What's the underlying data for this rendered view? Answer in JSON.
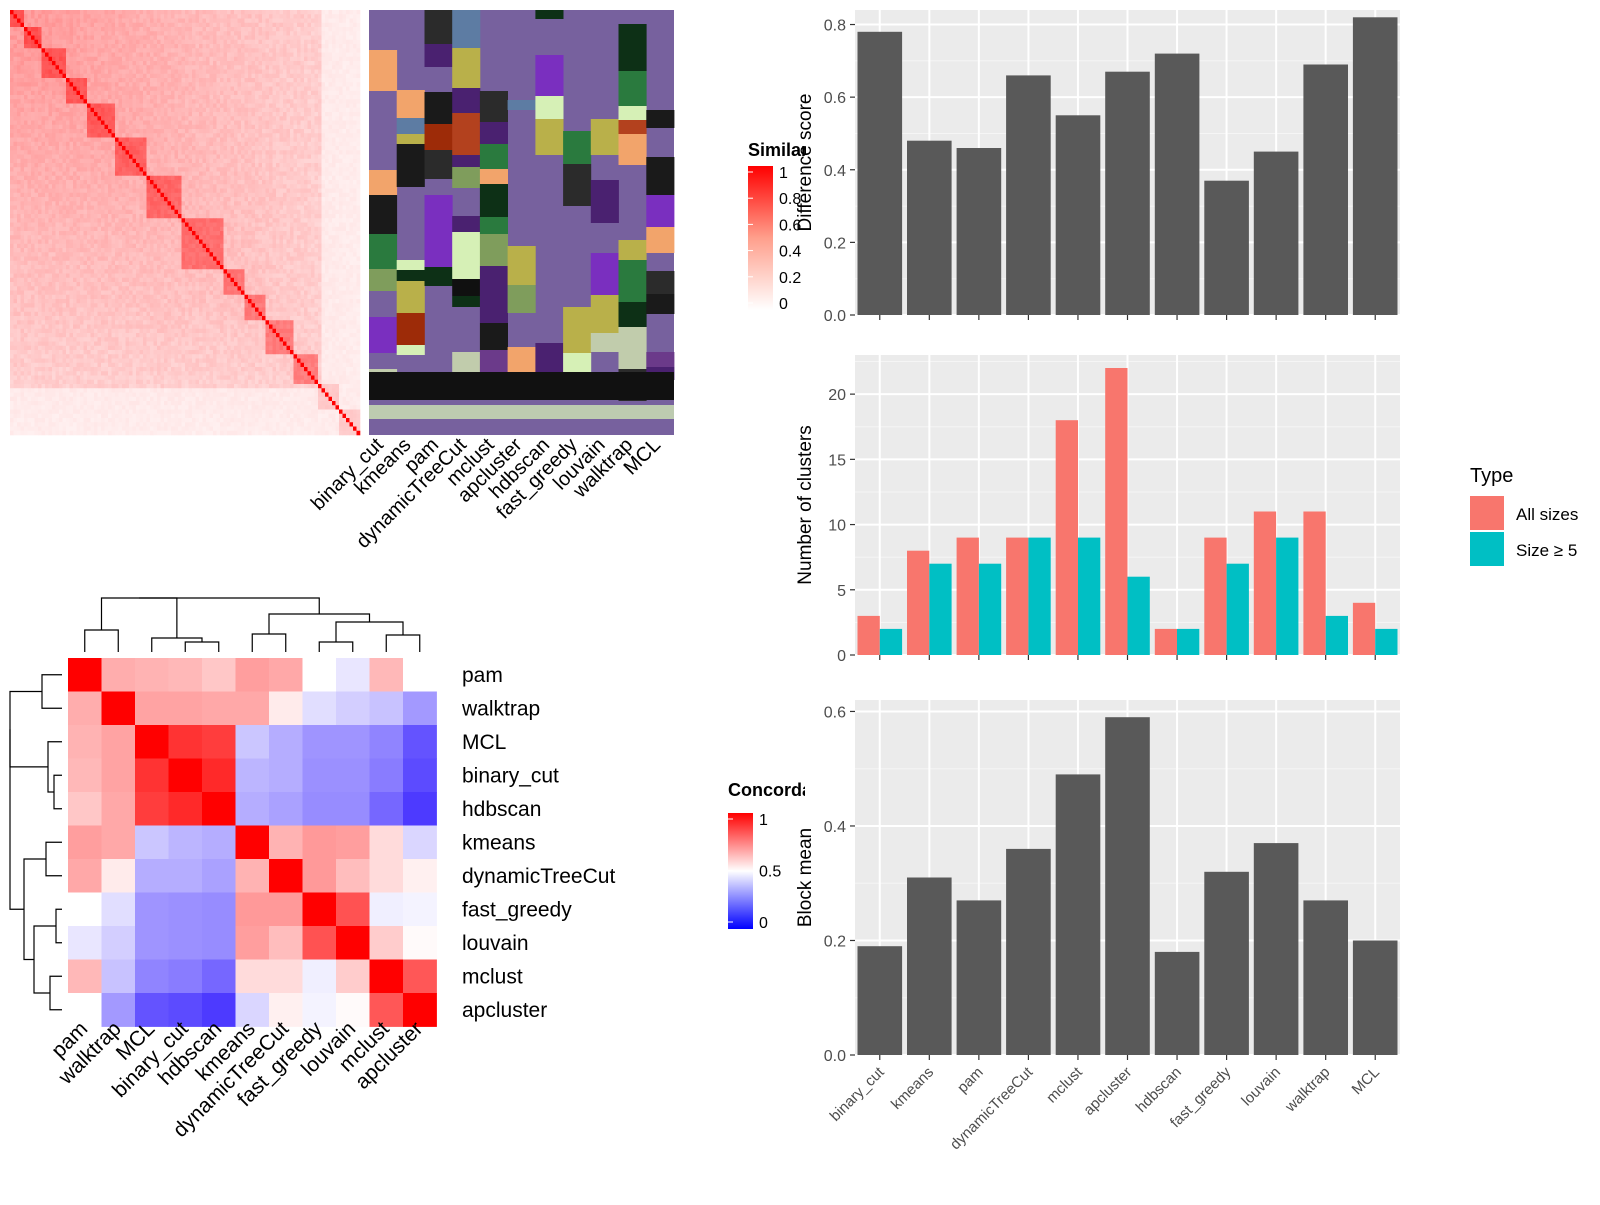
{
  "methods_ggplot": [
    "binary_cut",
    "kmeans",
    "pam",
    "dynamicTreeCut",
    "mclust",
    "apcluster",
    "hdbscan",
    "fast_greedy",
    "louvain",
    "walktrap",
    "MCL"
  ],
  "top_heatmap": {
    "legend_title": "Similarity",
    "legend_ticks": [
      "1",
      "0.8",
      "0.6",
      "0.4",
      "0.2",
      "0"
    ],
    "method_labels": [
      "binary_cut",
      "kmeans",
      "pam",
      "dynamicTreeCut",
      "mclust",
      "apcluster",
      "hdbscan",
      "fast_greedy",
      "louvain",
      "walktrap",
      "MCL"
    ],
    "n_terms": 100,
    "colors": {
      "high": "#ff0000",
      "low": "#ffffff",
      "partition_background": "#77619e",
      "partition_bottom_band": "#111111",
      "partition_light_band": "#bdcbb0"
    }
  },
  "concordance_heatmap": {
    "legend_title": "Concordance",
    "legend_ticks": [
      "1",
      "0.5",
      "0"
    ],
    "labels": [
      "pam",
      "walktrap",
      "MCL",
      "binary_cut",
      "hdbscan",
      "kmeans",
      "dynamicTreeCut",
      "fast_greedy",
      "louvain",
      "mclust",
      "apcluster"
    ],
    "matrix": [
      [
        1.0,
        0.66,
        0.65,
        0.64,
        0.61,
        0.69,
        0.67,
        0.5,
        0.44,
        0.64,
        0.5
      ],
      [
        0.66,
        1.0,
        0.68,
        0.68,
        0.67,
        0.67,
        0.54,
        0.42,
        0.38,
        0.35,
        0.25
      ],
      [
        0.65,
        0.68,
        1.0,
        0.9,
        0.88,
        0.36,
        0.3,
        0.24,
        0.24,
        0.2,
        0.08
      ],
      [
        0.64,
        0.68,
        0.9,
        1.0,
        0.92,
        0.32,
        0.3,
        0.23,
        0.23,
        0.18,
        0.06
      ],
      [
        0.61,
        0.67,
        0.88,
        0.92,
        1.0,
        0.3,
        0.27,
        0.22,
        0.22,
        0.13,
        0.02
      ],
      [
        0.69,
        0.67,
        0.36,
        0.32,
        0.3,
        1.0,
        0.65,
        0.7,
        0.69,
        0.57,
        0.4
      ],
      [
        0.67,
        0.54,
        0.3,
        0.3,
        0.27,
        0.65,
        1.0,
        0.7,
        0.63,
        0.57,
        0.53
      ],
      [
        0.5,
        0.42,
        0.24,
        0.23,
        0.22,
        0.7,
        0.7,
        1.0,
        0.84,
        0.46,
        0.47
      ],
      [
        0.44,
        0.38,
        0.24,
        0.23,
        0.22,
        0.69,
        0.63,
        0.84,
        1.0,
        0.6,
        0.51
      ],
      [
        0.64,
        0.35,
        0.2,
        0.18,
        0.13,
        0.57,
        0.57,
        0.46,
        0.6,
        1.0,
        0.83
      ],
      [
        0.5,
        0.25,
        0.08,
        0.06,
        0.02,
        0.4,
        0.53,
        0.47,
        0.51,
        0.83,
        1.0
      ]
    ]
  },
  "chart_data": [
    {
      "type": "bar",
      "categories": [
        "binary_cut",
        "kmeans",
        "pam",
        "dynamicTreeCut",
        "mclust",
        "apcluster",
        "hdbscan",
        "fast_greedy",
        "louvain",
        "walktrap",
        "MCL"
      ],
      "values": [
        0.78,
        0.48,
        0.46,
        0.66,
        0.55,
        0.67,
        0.72,
        0.37,
        0.45,
        0.69,
        0.82
      ],
      "ylabel": "Difference score",
      "xlabel": "",
      "ylim": [
        0,
        0.84
      ],
      "yticks": [
        "0.0",
        "0.2",
        "0.4",
        "0.6",
        "0.8"
      ],
      "grid": true,
      "color": "#595959"
    },
    {
      "type": "bar",
      "categories": [
        "binary_cut",
        "kmeans",
        "pam",
        "dynamicTreeCut",
        "mclust",
        "apcluster",
        "hdbscan",
        "fast_greedy",
        "louvain",
        "walktrap",
        "MCL"
      ],
      "series": [
        {
          "name": "All sizes",
          "values": [
            3,
            8,
            9,
            9,
            18,
            22,
            2,
            9,
            11,
            11,
            4
          ],
          "color": "#f8766d"
        },
        {
          "name": "Size ≥ 5",
          "values": [
            2,
            7,
            7,
            9,
            9,
            6,
            2,
            7,
            9,
            3,
            2
          ],
          "color": "#00bfc4"
        }
      ],
      "ylabel": "Number of clusters",
      "xlabel": "",
      "ylim": [
        0,
        23
      ],
      "yticks": [
        "0",
        "5",
        "10",
        "15",
        "20"
      ],
      "legend_title": "Type",
      "legend": "right",
      "grid": true
    },
    {
      "type": "bar",
      "categories": [
        "binary_cut",
        "kmeans",
        "pam",
        "dynamicTreeCut",
        "mclust",
        "apcluster",
        "hdbscan",
        "fast_greedy",
        "louvain",
        "walktrap",
        "MCL"
      ],
      "values": [
        0.19,
        0.31,
        0.27,
        0.36,
        0.49,
        0.59,
        0.18,
        0.32,
        0.37,
        0.27,
        0.2
      ],
      "ylabel": "Block mean",
      "xlabel": "",
      "ylim": [
        0,
        0.62
      ],
      "yticks": [
        "0.0",
        "0.2",
        "0.4",
        "0.6"
      ],
      "grid": true,
      "color": "#595959"
    }
  ]
}
